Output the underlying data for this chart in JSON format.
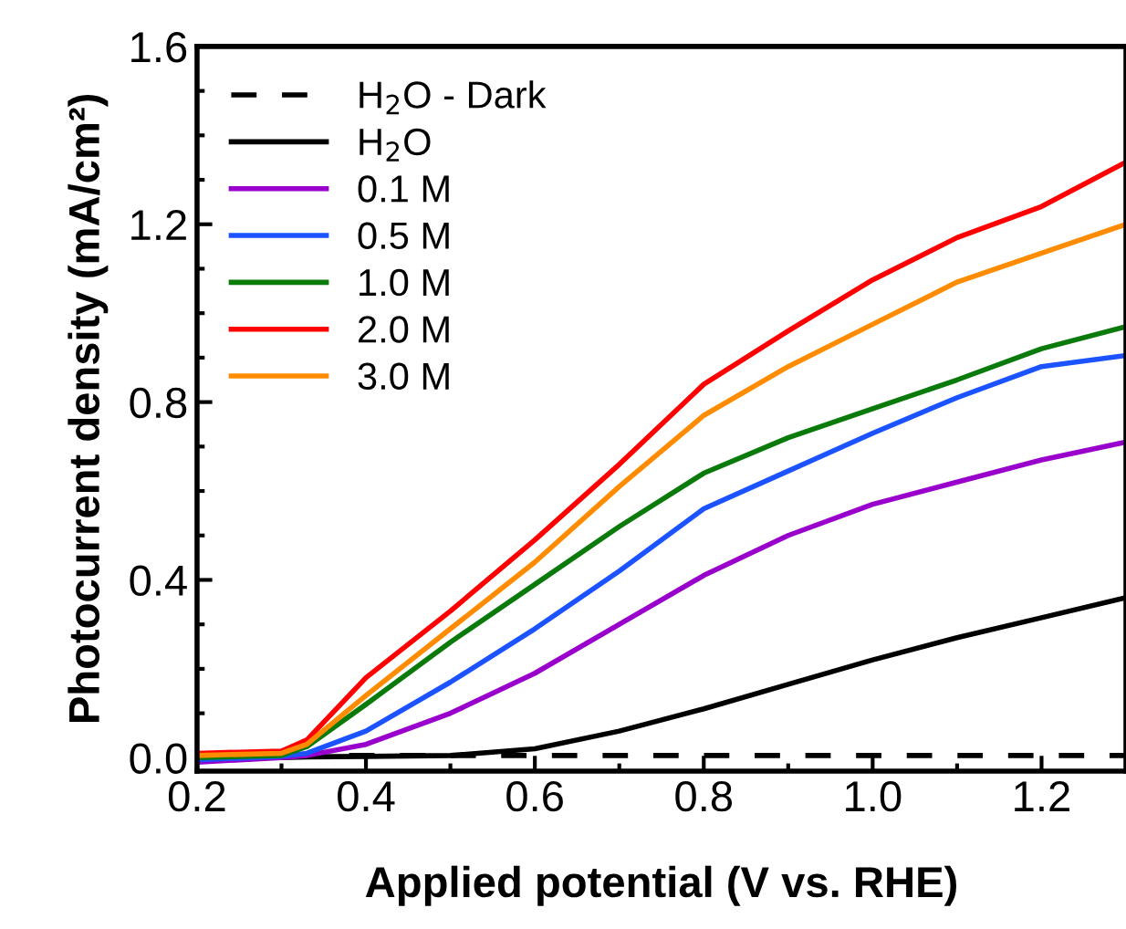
{
  "chart_data": {
    "type": "line",
    "xlabel": "Applied potential (V vs. RHE)",
    "ylabel": "Photocurrent density (mA/cm²)",
    "x": [
      0.2,
      0.3,
      0.33,
      0.4,
      0.5,
      0.6,
      0.7,
      0.8,
      0.9,
      1.0,
      1.1,
      1.2,
      1.3
    ],
    "xlim": [
      0.2,
      1.3
    ],
    "xticks": [
      0.2,
      0.4,
      0.6,
      0.8,
      {
        "value": 1,
        "label": "1.0"
      },
      1.2
    ],
    "ylim": [
      -0.03,
      1.6
    ],
    "yticks": [
      {
        "value": 0,
        "label": "0.0"
      },
      0.4,
      0.8,
      1.2,
      1.6
    ],
    "grid": false,
    "legend": "top left",
    "series": [
      {
        "name": "H$_{2}$O - Dark",
        "color": "#000000",
        "line_style": "dashed",
        "values": [
          0.005,
          0.005,
          0.005,
          0.005,
          0.005,
          0.005,
          0.005,
          0.005,
          0.005,
          0.005,
          0.005,
          0.005,
          0.005
        ]
      },
      {
        "name": "H$_{2}$O",
        "color": "#000000",
        "values": [
          0.0,
          0.0,
          0.002,
          0.003,
          0.005,
          0.02,
          0.06,
          0.11,
          0.165,
          0.22,
          0.27,
          0.315,
          0.36
        ]
      },
      {
        "name": "0.1 M",
        "color": "#9900cc",
        "values": [
          -0.01,
          0.0,
          0.005,
          0.03,
          0.1,
          0.19,
          0.3,
          0.41,
          0.5,
          0.57,
          0.62,
          0.67,
          0.71
        ]
      },
      {
        "name": "0.5 M",
        "color": "#1a53ff",
        "values": [
          -0.005,
          0.003,
          0.01,
          0.06,
          0.17,
          0.29,
          0.42,
          0.56,
          0.645,
          0.73,
          0.81,
          0.88,
          0.905
        ]
      },
      {
        "name": "1.0 M",
        "color": "#0a7a0a",
        "values": [
          0.0,
          0.005,
          0.025,
          0.12,
          0.26,
          0.39,
          0.52,
          0.64,
          0.72,
          0.785,
          0.85,
          0.92,
          0.97
        ]
      },
      {
        "name": "2.0 M",
        "color": "#ff0000",
        "values": [
          0.01,
          0.015,
          0.04,
          0.18,
          0.33,
          0.49,
          0.66,
          0.84,
          0.96,
          1.075,
          1.17,
          1.24,
          1.34
        ]
      },
      {
        "name": "3.0 M",
        "color": "#ff8c00",
        "values": [
          0.005,
          0.01,
          0.03,
          0.14,
          0.29,
          0.44,
          0.61,
          0.77,
          0.88,
          0.975,
          1.07,
          1.135,
          1.2
        ]
      }
    ]
  }
}
